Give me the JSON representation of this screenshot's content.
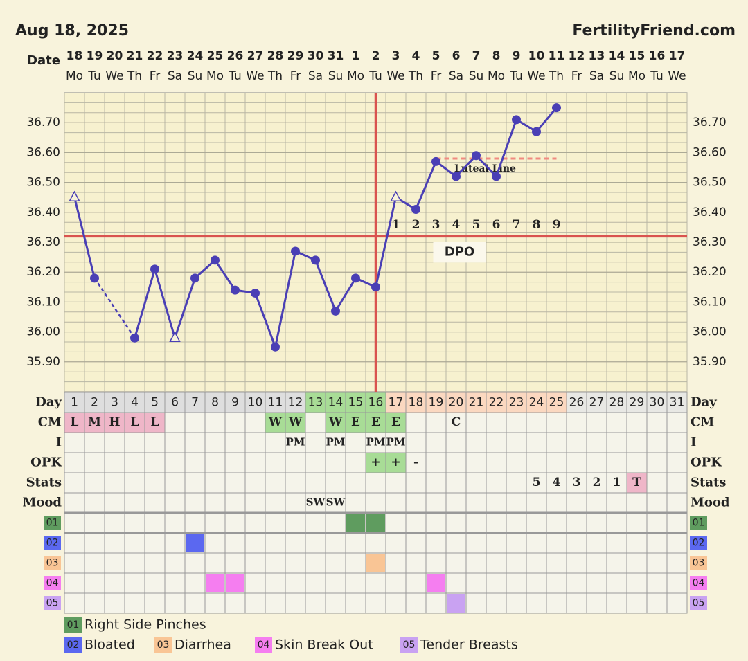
{
  "header": {
    "date": "Aug 18, 2025",
    "site": "FertilityFriend.com"
  },
  "chart_data": {
    "type": "line",
    "x_label": "Date",
    "categories": [
      "18",
      "19",
      "20",
      "21",
      "22",
      "23",
      "24",
      "25",
      "26",
      "27",
      "28",
      "29",
      "30",
      "31",
      "1",
      "2",
      "3",
      "4",
      "5",
      "6",
      "7",
      "8",
      "9",
      "10",
      "11",
      "12",
      "13",
      "14",
      "15",
      "16",
      "17"
    ],
    "weekdays": [
      "Mo",
      "Tu",
      "We",
      "Th",
      "Fr",
      "Sa",
      "Su",
      "Mo",
      "Tu",
      "We",
      "Th",
      "Fr",
      "Sa",
      "Su",
      "Mo",
      "Tu",
      "We",
      "Th",
      "Fr",
      "Sa",
      "Su",
      "Mo",
      "Tu",
      "We",
      "Th",
      "Fr",
      "Sa",
      "Su",
      "Mo",
      "Tu",
      "We"
    ],
    "values": [
      36.45,
      36.18,
      null,
      35.98,
      36.21,
      35.98,
      36.18,
      36.24,
      36.14,
      36.13,
      35.95,
      36.27,
      36.24,
      36.07,
      36.18,
      36.15,
      36.45,
      36.41,
      36.57,
      36.52,
      36.59,
      36.52,
      36.71,
      36.67,
      36.75,
      null,
      null,
      null,
      null,
      null,
      null
    ],
    "markers": [
      "triangle",
      "circle",
      null,
      "circle",
      "circle",
      "triangle",
      "circle",
      "circle",
      "circle",
      "circle",
      "circle",
      "circle",
      "circle",
      "circle",
      "circle",
      "circle",
      "triangle",
      "circle",
      "circle",
      "circle",
      "circle",
      "circle",
      "circle",
      "circle",
      "circle",
      null,
      null,
      null,
      null,
      null,
      null
    ],
    "color": "#4a3fb5",
    "ylim": [
      35.8,
      36.8
    ],
    "yticks": [
      {
        "value": 35.9,
        "label": "35.90"
      },
      {
        "value": 36.0,
        "label": "36.00"
      },
      {
        "value": 36.1,
        "label": "36.10"
      },
      {
        "value": 36.2,
        "label": "36.20"
      },
      {
        "value": 36.3,
        "label": "36.30"
      },
      {
        "value": 36.4,
        "label": "36.40"
      },
      {
        "value": 36.5,
        "label": "36.50"
      },
      {
        "value": 36.6,
        "label": "36.60"
      },
      {
        "value": 36.7,
        "label": "36.70"
      }
    ],
    "coverline": {
      "value": 36.32,
      "color": "#d9534f"
    },
    "ovulation_day": 16,
    "luteal_line": {
      "label": "Luteal Line",
      "value": 36.58,
      "from_day": 19,
      "to_day": 25,
      "color": "#f08a80"
    },
    "dpo": {
      "label": "DPO",
      "start_day": 17,
      "values": [
        1,
        2,
        3,
        4,
        5,
        6,
        7,
        8,
        9
      ]
    }
  },
  "table": {
    "day_label": "Day",
    "days": [
      1,
      2,
      3,
      4,
      5,
      6,
      7,
      8,
      9,
      10,
      11,
      12,
      13,
      14,
      15,
      16,
      17,
      18,
      19,
      20,
      21,
      22,
      23,
      24,
      25,
      26,
      27,
      28,
      29,
      30,
      31
    ],
    "day_colors": [
      "#dedede",
      "#dedede",
      "#dedede",
      "#dedede",
      "#dedede",
      "#dedede",
      "#dedede",
      "#dedede",
      "#dedede",
      "#dedede",
      "#dedede",
      "#dedede",
      "#a8dc96",
      "#a8dc96",
      "#a8dc96",
      "#a8dc96",
      "#fbd8c0",
      "#fbd8c0",
      "#fbd8c0",
      "#fbd8c0",
      "#fbd8c0",
      "#fbd8c0",
      "#fbd8c0",
      "#fbd8c0",
      "#fbd8c0",
      "#e8e8e4",
      "#e8e8e4",
      "#e8e8e4",
      "#e8e8e4",
      "#e8e8e4",
      "#e8e8e4"
    ],
    "rows": [
      {
        "label": "CM",
        "cells": [
          "L",
          "M",
          "H",
          "L",
          "L",
          null,
          null,
          null,
          null,
          null,
          "W",
          "W",
          null,
          "W",
          "E",
          "E",
          "E",
          null,
          null,
          "C",
          null,
          null,
          null,
          null,
          null,
          null,
          null,
          null,
          null,
          null,
          null
        ],
        "colors": [
          "#efb6c8",
          "#efb6c8",
          "#efb6c8",
          "#efb6c8",
          "#efb6c8",
          null,
          null,
          null,
          null,
          null,
          "#a8dc96",
          "#a8dc96",
          null,
          "#a8dc96",
          "#a8dc96",
          "#a8dc96",
          "#a8dc96",
          null,
          null,
          null,
          null,
          null,
          null,
          null,
          null,
          null,
          null,
          null,
          null,
          null,
          null
        ]
      },
      {
        "label": "I",
        "cells": [
          null,
          null,
          null,
          null,
          null,
          null,
          null,
          null,
          null,
          null,
          null,
          "PM",
          null,
          "PM",
          null,
          "PM",
          "PM",
          null,
          null,
          null,
          null,
          null,
          null,
          null,
          null,
          null,
          null,
          null,
          null,
          null,
          null
        ]
      },
      {
        "label": "OPK",
        "cells": [
          null,
          null,
          null,
          null,
          null,
          null,
          null,
          null,
          null,
          null,
          null,
          null,
          null,
          null,
          null,
          "+",
          "+",
          "-",
          null,
          null,
          null,
          null,
          null,
          null,
          null,
          null,
          null,
          null,
          null,
          null,
          null
        ],
        "colors": [
          null,
          null,
          null,
          null,
          null,
          null,
          null,
          null,
          null,
          null,
          null,
          null,
          null,
          null,
          null,
          "#a8dc96",
          "#a8dc96",
          null,
          null,
          null,
          null,
          null,
          null,
          null,
          null,
          null,
          null,
          null,
          null,
          null,
          null
        ]
      },
      {
        "label": "Stats",
        "cells": [
          null,
          null,
          null,
          null,
          null,
          null,
          null,
          null,
          null,
          null,
          null,
          null,
          null,
          null,
          null,
          null,
          null,
          null,
          null,
          null,
          null,
          null,
          null,
          5,
          4,
          3,
          2,
          1,
          "T",
          null,
          null
        ],
        "colors": [
          null,
          null,
          null,
          null,
          null,
          null,
          null,
          null,
          null,
          null,
          null,
          null,
          null,
          null,
          null,
          null,
          null,
          null,
          null,
          null,
          null,
          null,
          null,
          null,
          null,
          null,
          null,
          null,
          "#efb6c8",
          null,
          null
        ]
      },
      {
        "label": "Mood",
        "cells": [
          null,
          null,
          null,
          null,
          null,
          null,
          null,
          null,
          null,
          null,
          null,
          null,
          "SW",
          "SW",
          null,
          null,
          null,
          null,
          null,
          null,
          null,
          null,
          null,
          null,
          null,
          null,
          null,
          null,
          null,
          null,
          null
        ]
      }
    ],
    "symptoms": [
      {
        "code": "01",
        "name": "Right Side Pinches",
        "color": "#5f9c5f",
        "days": [
          15,
          16
        ]
      },
      {
        "code": "02",
        "name": "Bloated",
        "color": "#5b68f0",
        "days": [
          7
        ]
      },
      {
        "code": "03",
        "name": "Diarrhea",
        "color": "#f9c595",
        "days": [
          16
        ]
      },
      {
        "code": "04",
        "name": "Skin Break Out",
        "color": "#f57ef0",
        "days": [
          8,
          9,
          19
        ]
      },
      {
        "code": "05",
        "name": "Tender Breasts",
        "color": "#c9a2f2",
        "days": [
          20
        ]
      }
    ]
  }
}
